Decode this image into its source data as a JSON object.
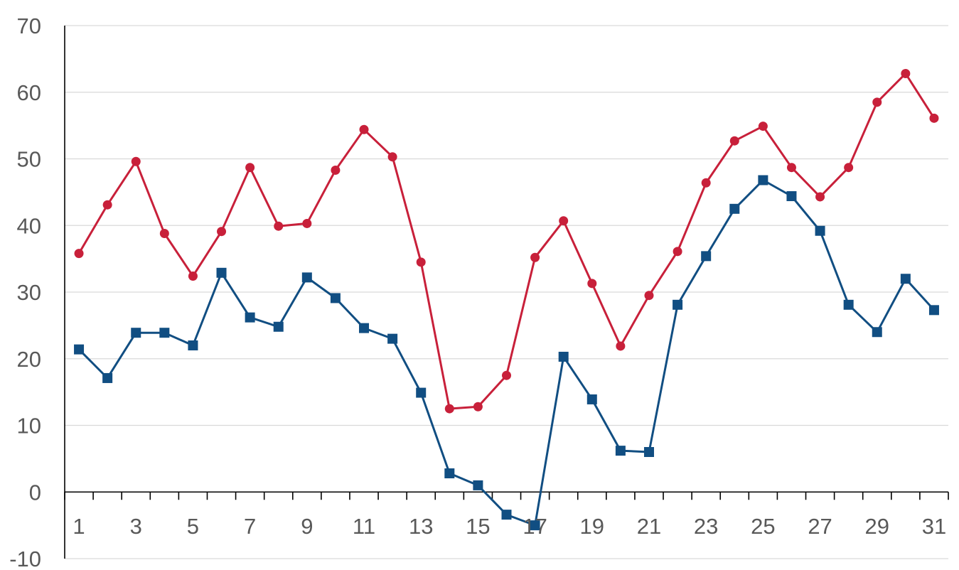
{
  "chart_data": {
    "type": "line",
    "title": "",
    "xlabel": "",
    "ylabel": "",
    "x": [
      1,
      2,
      3,
      4,
      5,
      6,
      7,
      8,
      9,
      10,
      11,
      12,
      13,
      14,
      15,
      16,
      17,
      18,
      19,
      20,
      21,
      22,
      23,
      24,
      25,
      26,
      27,
      28,
      29,
      30,
      31
    ],
    "x_tick_labels": [
      "1",
      "3",
      "5",
      "7",
      "9",
      "11",
      "13",
      "15",
      "17",
      "19",
      "21",
      "23",
      "25",
      "27",
      "29",
      "31"
    ],
    "y_tick_labels": [
      "-10",
      "0",
      "10",
      "20",
      "30",
      "40",
      "50",
      "60",
      "70"
    ],
    "ylim": [
      -10,
      70
    ],
    "y_tick_step": 10,
    "grid": "horizontal",
    "legend": "none",
    "series": [
      {
        "marker": "circle",
        "color": "#c8203a",
        "values": [
          35.8,
          43.1,
          49.6,
          38.8,
          32.4,
          39.1,
          48.7,
          39.9,
          40.3,
          48.3,
          54.4,
          50.3,
          34.5,
          12.5,
          12.8,
          17.5,
          35.2,
          40.7,
          31.3,
          21.9,
          29.5,
          36.1,
          46.4,
          52.7,
          54.9,
          48.7,
          44.3,
          48.7,
          58.5,
          62.8,
          56.1
        ]
      },
      {
        "marker": "square",
        "color": "#114e82",
        "values": [
          21.4,
          17.1,
          23.9,
          23.9,
          22.0,
          32.9,
          26.2,
          24.8,
          32.2,
          29.1,
          24.6,
          23.0,
          14.9,
          2.8,
          1.0,
          -3.4,
          -5.0,
          20.3,
          13.9,
          6.2,
          6.0,
          28.1,
          35.4,
          42.5,
          46.8,
          44.4,
          39.2,
          28.1,
          24.0,
          32.0,
          27.3
        ]
      }
    ]
  }
}
